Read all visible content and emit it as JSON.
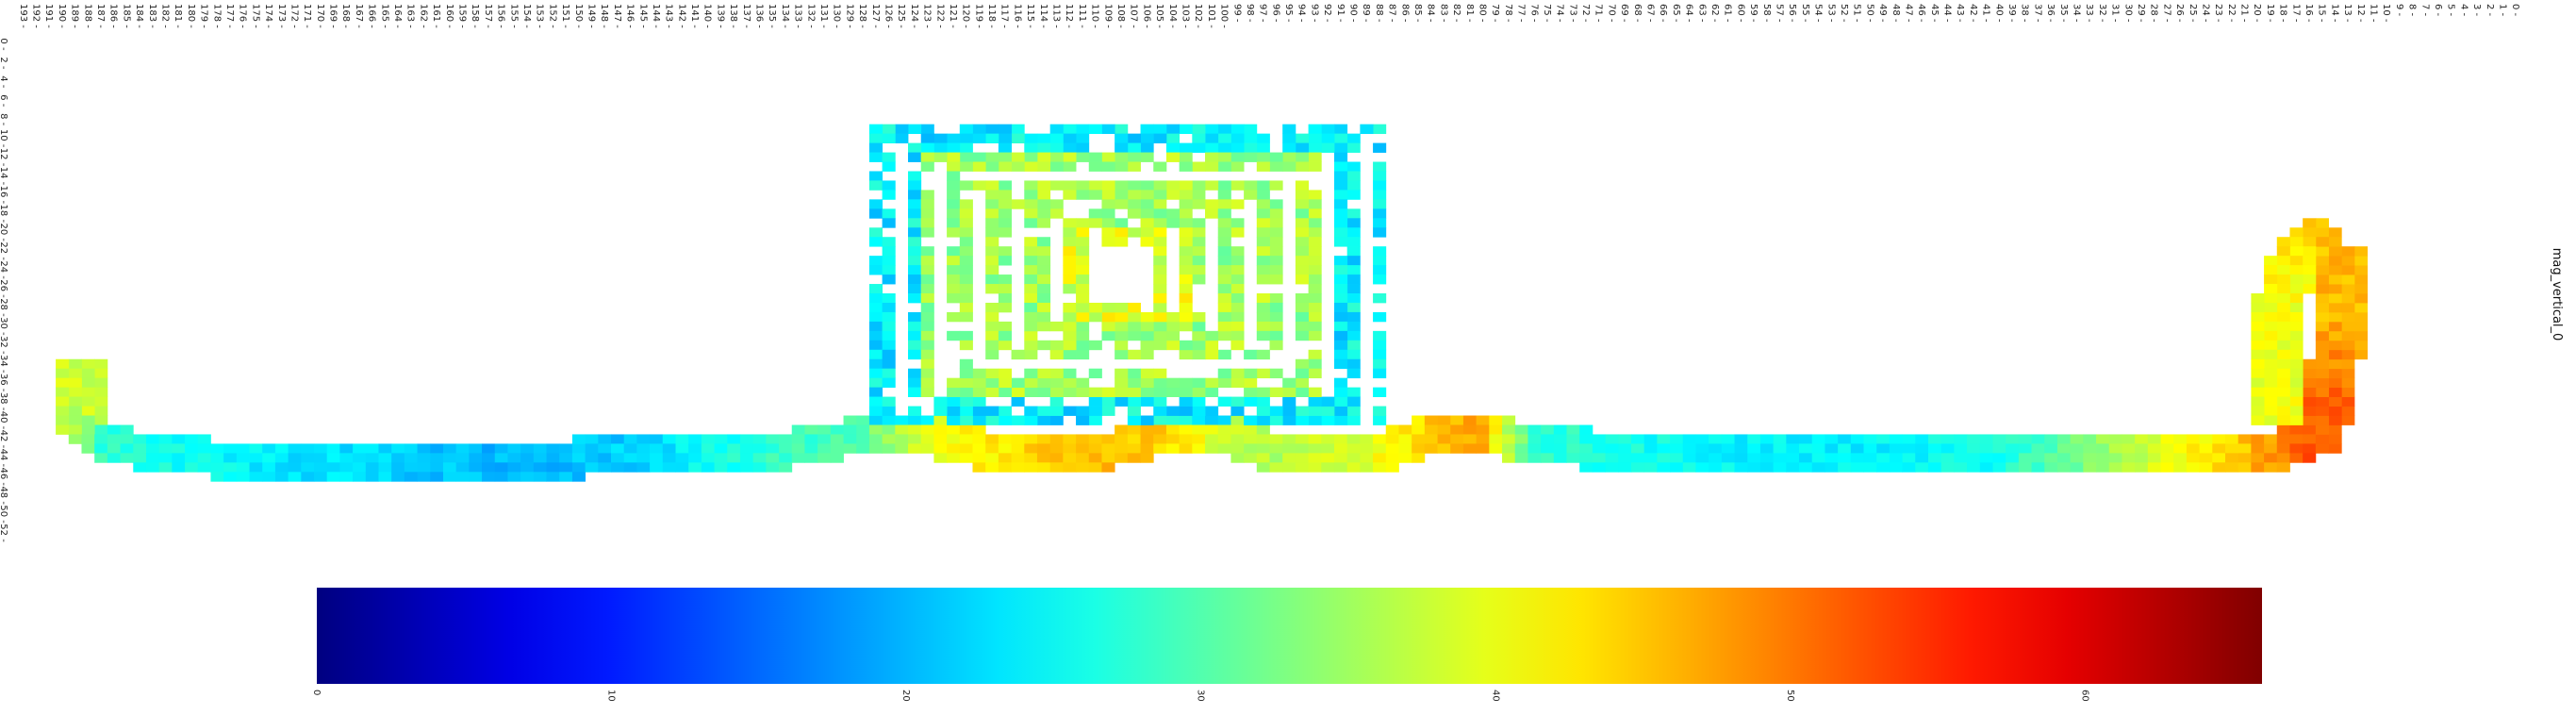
{
  "chart_data": {
    "type": "heatmap",
    "title": "mag_vertical_0",
    "colormap": "jet",
    "grid": false,
    "x_tick_labels": [
      "0",
      "1",
      "2",
      "3",
      "4",
      "5",
      "6",
      "7",
      "8",
      "9",
      "10",
      "11",
      "12",
      "13",
      "14",
      "15",
      "16",
      "17",
      "18",
      "19",
      "20",
      "21",
      "22",
      "23",
      "24",
      "25",
      "26",
      "27",
      "28",
      "29",
      "30",
      "31",
      "32",
      "33",
      "34",
      "35",
      "36",
      "37",
      "38",
      "39",
      "40",
      "41",
      "42",
      "43",
      "44",
      "45",
      "46",
      "47",
      "48",
      "49",
      "50",
      "51",
      "52",
      "53",
      "54",
      "55",
      "56",
      "57",
      "58",
      "59",
      "60",
      "61",
      "62",
      "63",
      "64",
      "65",
      "66",
      "67",
      "68",
      "69",
      "70",
      "71",
      "72",
      "73",
      "74",
      "75",
      "76",
      "77",
      "78",
      "79",
      "80",
      "81",
      "82",
      "83",
      "84",
      "85",
      "86",
      "87",
      "88",
      "89",
      "90",
      "91",
      "92",
      "93",
      "94",
      "95",
      "96",
      "97",
      "98",
      "99",
      "100",
      "101",
      "102",
      "103",
      "104",
      "105",
      "106",
      "107",
      "108",
      "109",
      "110",
      "111",
      "112",
      "113",
      "114",
      "115",
      "116",
      "117",
      "118",
      "119",
      "120",
      "121",
      "122",
      "123",
      "124",
      "125",
      "126",
      "127",
      "128",
      "129",
      "130",
      "131",
      "132",
      "133",
      "134",
      "135",
      "136",
      "137",
      "138",
      "139",
      "140",
      "141",
      "142",
      "143",
      "144",
      "145",
      "146",
      "147",
      "148",
      "149",
      "150",
      "151",
      "152",
      "153",
      "154",
      "155",
      "156",
      "157",
      "158",
      "159",
      "160",
      "161",
      "162",
      "163",
      "164",
      "165",
      "166",
      "167",
      "168",
      "169",
      "170",
      "171",
      "172",
      "173",
      "174",
      "175",
      "176",
      "177",
      "178",
      "179",
      "180",
      "181",
      "182",
      "183",
      "184",
      "185",
      "186",
      "187",
      "188",
      "189",
      "190",
      "191",
      "192",
      "193"
    ],
    "y_tick_labels": [
      "0",
      "2",
      "4",
      "6",
      "8",
      "10",
      "12",
      "14",
      "16",
      "18",
      "20",
      "22",
      "24",
      "26",
      "28",
      "30",
      "32",
      "34",
      "36",
      "38",
      "40",
      "42",
      "44",
      "46",
      "48",
      "50",
      "52"
    ],
    "colorbar": {
      "range": [
        0,
        66
      ],
      "tick_labels": [
        "0",
        "10",
        "20",
        "30",
        "40",
        "50",
        "60"
      ]
    },
    "series": [
      {
        "type": "track",
        "points": [
          [
            189,
            34
          ],
          [
            189,
            41
          ],
          [
            187,
            43
          ],
          [
            182,
            44
          ],
          [
            175,
            45
          ],
          [
            165,
            45
          ],
          [
            155,
            45
          ],
          [
            145,
            44
          ],
          [
            135,
            44
          ],
          [
            128,
            42
          ],
          [
            123,
            42
          ],
          [
            118,
            44
          ],
          [
            110,
            44
          ],
          [
            104,
            42
          ],
          [
            100,
            42
          ],
          [
            96,
            44
          ],
          [
            88,
            44
          ],
          [
            84,
            42
          ],
          [
            80,
            42
          ],
          [
            76,
            43
          ],
          [
            68,
            44
          ],
          [
            60,
            44
          ],
          [
            50,
            44
          ],
          [
            40,
            44
          ],
          [
            30,
            44
          ],
          [
            20,
            44
          ],
          [
            16,
            43
          ],
          [
            15,
            38
          ],
          [
            14,
            29
          ],
          [
            14,
            22
          ],
          [
            16,
            21
          ],
          [
            18,
            23
          ],
          [
            19,
            30
          ],
          [
            19,
            40
          ]
        ],
        "values": [
          38,
          38,
          28,
          26,
          24,
          22,
          20,
          22,
          28,
          30,
          40,
          42,
          46,
          44,
          38,
          36,
          40,
          44,
          48,
          28,
          26,
          24,
          24,
          26,
          36,
          46,
          52,
          52,
          46,
          46,
          44,
          42,
          40,
          40
        ],
        "weight": 4
      },
      {
        "type": "rect",
        "x0": 127,
        "x1": 88,
        "y0": 9,
        "y1": 40,
        "spacing": 1.5,
        "values": [
          35,
          24,
          39
        ],
        "density": 0.82
      }
    ]
  }
}
